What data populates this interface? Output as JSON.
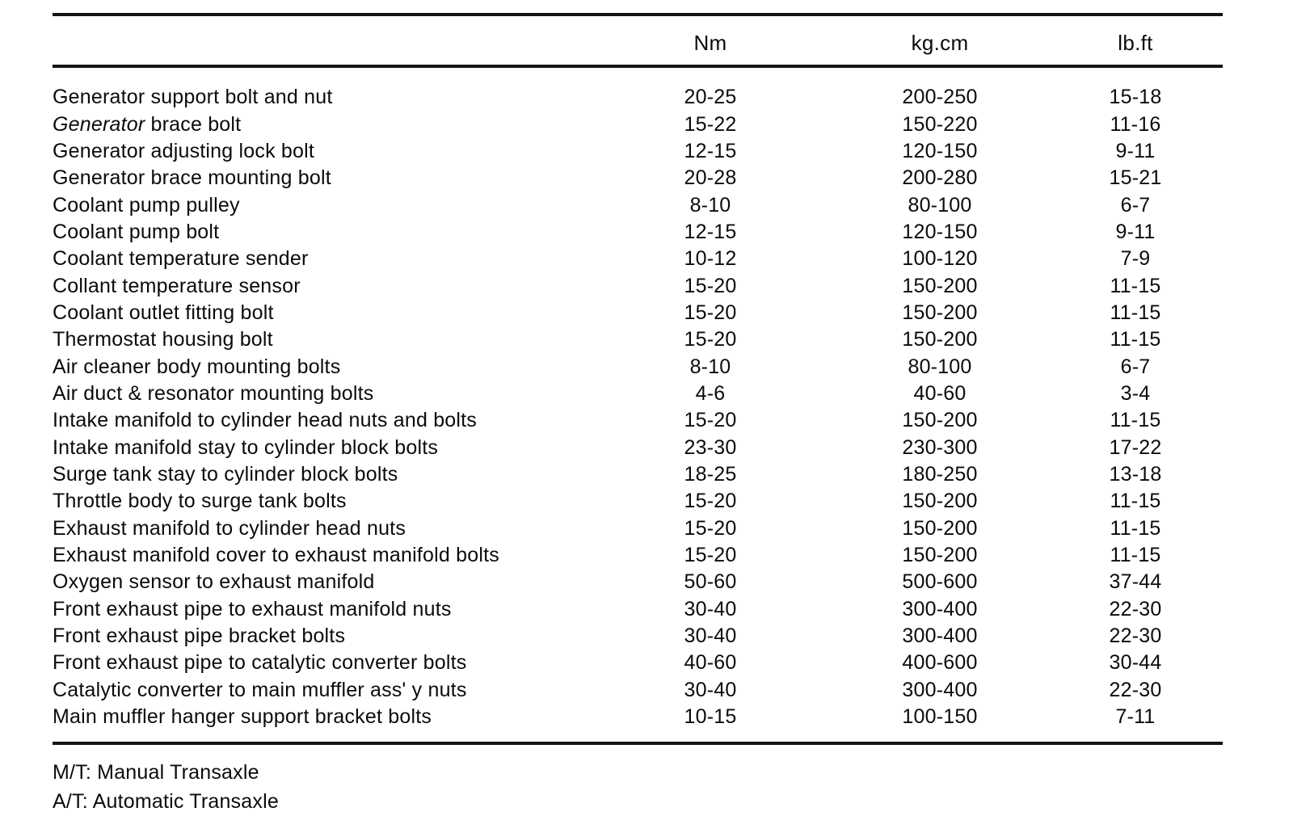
{
  "page": {
    "background_color": "#ffffff",
    "text_color": "#0b0b0b",
    "rule_color": "#151515"
  },
  "table": {
    "headers": {
      "item": "",
      "nm": "Nm",
      "kgcm": "kg.cm",
      "lbft": "lb.ft"
    },
    "rows": [
      {
        "label": "Generator support bolt and nut",
        "nm": "20-25",
        "kgcm": "200-250",
        "lbft": "15-18"
      },
      {
        "label": "Generator brace bolt",
        "nm": "15-22",
        "kgcm": "150-220",
        "lbft": "11-16",
        "italic_first_word": true
      },
      {
        "label": "Generator adjusting lock bolt",
        "nm": "12-15",
        "kgcm": "120-150",
        "lbft": "9-11"
      },
      {
        "label": "Generator brace mounting bolt",
        "nm": "20-28",
        "kgcm": "200-280",
        "lbft": "15-21"
      },
      {
        "label": "Coolant pump pulley",
        "nm": "8-10",
        "kgcm": "80-100",
        "lbft": "6-7"
      },
      {
        "label": "Coolant pump bolt",
        "nm": "12-15",
        "kgcm": "120-150",
        "lbft": "9-11"
      },
      {
        "label": "Coolant temperature sender",
        "nm": "10-12",
        "kgcm": "100-120",
        "lbft": "7-9"
      },
      {
        "label": "Collant temperature sensor",
        "nm": "15-20",
        "kgcm": "150-200",
        "lbft": "11-15"
      },
      {
        "label": "Coolant outlet fitting bolt",
        "nm": "15-20",
        "kgcm": "150-200",
        "lbft": "11-15"
      },
      {
        "label": "Thermostat housing bolt",
        "nm": "15-20",
        "kgcm": "150-200",
        "lbft": "11-15"
      },
      {
        "label": "Air cleaner body mounting bolts",
        "nm": "8-10",
        "kgcm": "80-100",
        "lbft": "6-7"
      },
      {
        "label": "Air duct & resonator mounting bolts",
        "nm": "4-6",
        "kgcm": "40-60",
        "lbft": "3-4"
      },
      {
        "label": "Intake manifold to cylinder head nuts and bolts",
        "nm": "15-20",
        "kgcm": "150-200",
        "lbft": "11-15"
      },
      {
        "label": "Intake manifold stay to cylinder block bolts",
        "nm": "23-30",
        "kgcm": "230-300",
        "lbft": "17-22"
      },
      {
        "label": "Surge tank stay to cylinder block bolts",
        "nm": "18-25",
        "kgcm": "180-250",
        "lbft": "13-18"
      },
      {
        "label": "Throttle body to surge tank bolts",
        "nm": "15-20",
        "kgcm": "150-200",
        "lbft": "11-15"
      },
      {
        "label": "Exhaust manifold to cylinder head nuts",
        "nm": "15-20",
        "kgcm": "150-200",
        "lbft": "11-15"
      },
      {
        "label": "Exhaust manifold cover to exhaust manifold bolts",
        "nm": "15-20",
        "kgcm": "150-200",
        "lbft": "11-15"
      },
      {
        "label": "Oxygen sensor to exhaust manifold",
        "nm": "50-60",
        "kgcm": "500-600",
        "lbft": "37-44"
      },
      {
        "label": "Front exhaust pipe to exhaust manifold nuts",
        "nm": "30-40",
        "kgcm": "300-400",
        "lbft": "22-30"
      },
      {
        "label": "Front exhaust pipe bracket bolts",
        "nm": "30-40",
        "kgcm": "300-400",
        "lbft": "22-30"
      },
      {
        "label": "Front exhaust pipe to catalytic converter bolts",
        "nm": "40-60",
        "kgcm": "400-600",
        "lbft": "30-44"
      },
      {
        "label": "Catalytic converter to main muffler ass' y nuts",
        "nm": "30-40",
        "kgcm": "300-400",
        "lbft": "22-30"
      },
      {
        "label": "Main muffler hanger support bracket bolts",
        "nm": "10-15",
        "kgcm": "100-150",
        "lbft": "7-11"
      }
    ]
  },
  "footnotes": [
    "M/T: Manual Transaxle",
    "A/T: Automatic Transaxle"
  ]
}
